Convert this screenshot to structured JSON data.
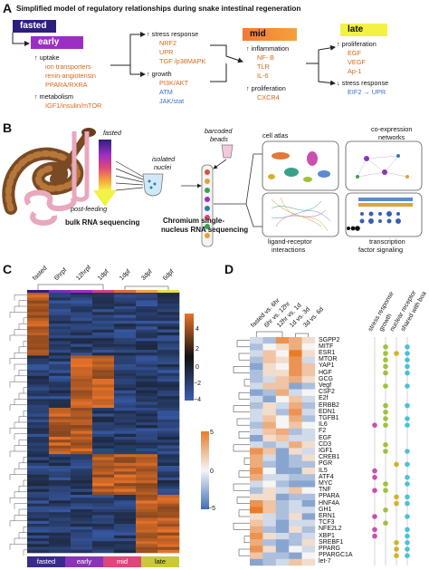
{
  "panels": {
    "a": "A",
    "b": "B",
    "c": "C",
    "d": "D"
  },
  "panel_a": {
    "title": "Simplified model of regulatory relationships during snake intestinal regeneration",
    "stages": {
      "fasted": "fasted",
      "early": "early",
      "mid": "mid",
      "late": "late"
    },
    "early_uptake": {
      "header": "↑ uptake",
      "items": [
        "ion transporters",
        "renin-angiotensin",
        "PPARA/RXRA"
      ]
    },
    "early_metabolism": {
      "header": "↑ metabolism",
      "item": "IGF1/insulin/mTOR"
    },
    "stress_response": {
      "header": "↑ stress response",
      "items": [
        "NRF2",
        "UPR",
        "TGF /p38MAPK"
      ]
    },
    "growth": {
      "header": "↑ growth",
      "items": [
        "PI3K/AKT",
        "ATM",
        "JAK/stat"
      ]
    },
    "mid_inflammation": {
      "header": "↑ inflammation",
      "items": [
        "NF- B",
        "TLR",
        "IL-6"
      ]
    },
    "mid_proliferation": {
      "header": "↑ proliferation",
      "item": "CXCR4"
    },
    "late_proliferation": {
      "header": "↑ proliferation",
      "items": [
        "EGF",
        "VEGF",
        "Ap-1"
      ]
    },
    "late_stress": {
      "header": "↓ stress response",
      "item": "EIF2 → UPR"
    }
  },
  "panel_b": {
    "fasted": "fasted",
    "post_feeding": "post-feeding",
    "barcoded_beads": "barcoded beads",
    "isolated_nuclei": "isolated nuclei",
    "bulk": "bulk RNA sequencing",
    "chromium_line1": "Chromium single-",
    "chromium_line2": "nucleus RNA sequencing",
    "cell_atlas": "cell atlas",
    "coexpression_line1": "co-expression",
    "coexpression_line2": "networks",
    "ligand_line1": "ligand-receptor",
    "ligand_line2": "interactions",
    "tf_line1": "transcription",
    "tf_line2": "factor signaling"
  },
  "panel_c": {
    "columns": [
      "fasted",
      "6hrpf",
      "12hrpf",
      "1dpf",
      "1dpf",
      "3dpf",
      "6dpf"
    ],
    "bottom_labels": [
      "fasted",
      "early",
      "mid",
      "late"
    ],
    "bottom_colors": [
      "#3b2a8c",
      "#8a35b8",
      "#e0457b",
      "#c9c93a"
    ],
    "legend_ticks": [
      "4",
      "2",
      "0",
      "−2",
      "−4"
    ],
    "colors": {
      "high": "#e8732a",
      "mid": "#111111",
      "low": "#3a5fb0"
    }
  },
  "panel_d": {
    "columns": [
      "fasted vs. 6hr",
      "6hr vs. 12hr",
      "12hr vs. 1d",
      "1d vs. 3d",
      "3d vs. 6d"
    ],
    "pathway_columns": [
      "stress response",
      "growth",
      "nuclear receptor",
      "shared with boa"
    ],
    "genes": [
      "SGPP2",
      "MITF",
      "ESR1",
      "MTOR",
      "YAP1",
      "HGF",
      "GCG",
      "Vegf",
      "CSF2",
      "E2f",
      "ERBB2",
      "EDN1",
      "TGFB1",
      "IL6",
      "F2",
      "EGF",
      "CD3",
      "IGF1",
      "CREB1",
      "PGR",
      "IL5",
      "ATF4",
      "MYC",
      "TNF",
      "PPARA",
      "HNF4A",
      "GH1",
      "ERN1",
      "TCF3",
      "NFE2L2",
      "XBP1",
      "SREBF1",
      "PPARG",
      "PPARGC1A",
      "let-7"
    ],
    "legend_ticks": [
      "5",
      "0",
      "−5"
    ],
    "colors": {
      "high": "#e87b2a",
      "mid": "#f5f5f5",
      "low": "#3f6fb8",
      "stress": "#c94fb0",
      "growth": "#9fc23a",
      "nuclear": "#d4b128",
      "boa": "#4ec1d6"
    }
  }
}
